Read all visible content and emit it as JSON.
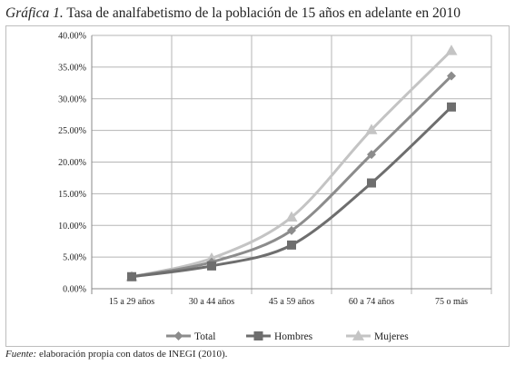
{
  "title": {
    "prefix": "Gráfica 1.",
    "text": "Tasa de analfabetismo de la población de 15 años en adelante en 2010"
  },
  "source": {
    "label": "Fuente:",
    "text": "elaboración propia con datos de INEGI (2010)."
  },
  "colors": {
    "Total": "#8c8c8c",
    "Hombres": "#6e6e6e",
    "Mujeres": "#c4c4c4",
    "grid": "#b5b5b5",
    "axis": "#8a8a8a"
  },
  "chart_data": {
    "type": "line",
    "categories": [
      "15 a 29 años",
      "30 a 44 años",
      "45 a 59 años",
      "60 a 74 años",
      "75 o más"
    ],
    "series": [
      {
        "name": "Total",
        "marker": "diamond",
        "values": [
          1.9,
          4.2,
          9.2,
          21.2,
          33.6
        ]
      },
      {
        "name": "Hombres",
        "marker": "square",
        "values": [
          1.9,
          3.6,
          6.9,
          16.7,
          28.7
        ]
      },
      {
        "name": "Mujeres",
        "marker": "triangle",
        "values": [
          1.9,
          4.8,
          11.3,
          25.1,
          37.6
        ]
      }
    ],
    "ylim": [
      0,
      40
    ],
    "yticks": [
      "0.00%",
      "5.00%",
      "10.00%",
      "15.00%",
      "20.00%",
      "25.00%",
      "30.00%",
      "35.00%",
      "40.00%"
    ],
    "grid": true,
    "legend": "bottom"
  }
}
